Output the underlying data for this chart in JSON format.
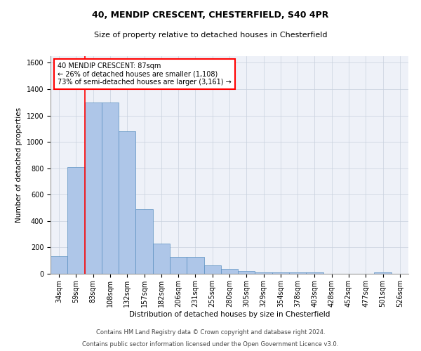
{
  "title1": "40, MENDIP CRESCENT, CHESTERFIELD, S40 4PR",
  "title2": "Size of property relative to detached houses in Chesterfield",
  "xlabel": "Distribution of detached houses by size in Chesterfield",
  "ylabel": "Number of detached properties",
  "categories": [
    "34sqm",
    "59sqm",
    "83sqm",
    "108sqm",
    "132sqm",
    "157sqm",
    "182sqm",
    "206sqm",
    "231sqm",
    "255sqm",
    "280sqm",
    "305sqm",
    "329sqm",
    "354sqm",
    "378sqm",
    "403sqm",
    "428sqm",
    "452sqm",
    "477sqm",
    "501sqm",
    "526sqm"
  ],
  "values": [
    135,
    810,
    1300,
    1300,
    1080,
    490,
    230,
    130,
    130,
    65,
    35,
    22,
    12,
    12,
    12,
    12,
    0,
    0,
    0,
    12,
    0
  ],
  "bar_color": "#aec6e8",
  "bar_edge_color": "#5a8fc0",
  "property_line_color": "red",
  "annotation_text": "40 MENDIP CRESCENT: 87sqm\n← 26% of detached houses are smaller (1,108)\n73% of semi-detached houses are larger (3,161) →",
  "annotation_box_color": "white",
  "annotation_box_edge_color": "red",
  "ylim": [
    0,
    1650
  ],
  "yticks": [
    0,
    200,
    400,
    600,
    800,
    1000,
    1200,
    1400,
    1600
  ],
  "grid_color": "#c8d0de",
  "background_color": "#eef1f8",
  "footer1": "Contains HM Land Registry data © Crown copyright and database right 2024.",
  "footer2": "Contains public sector information licensed under the Open Government Licence v3.0.",
  "title_fontsize": 9,
  "subtitle_fontsize": 8,
  "tick_fontsize": 7,
  "label_fontsize": 7.5,
  "footer_fontsize": 6,
  "annot_fontsize": 7
}
